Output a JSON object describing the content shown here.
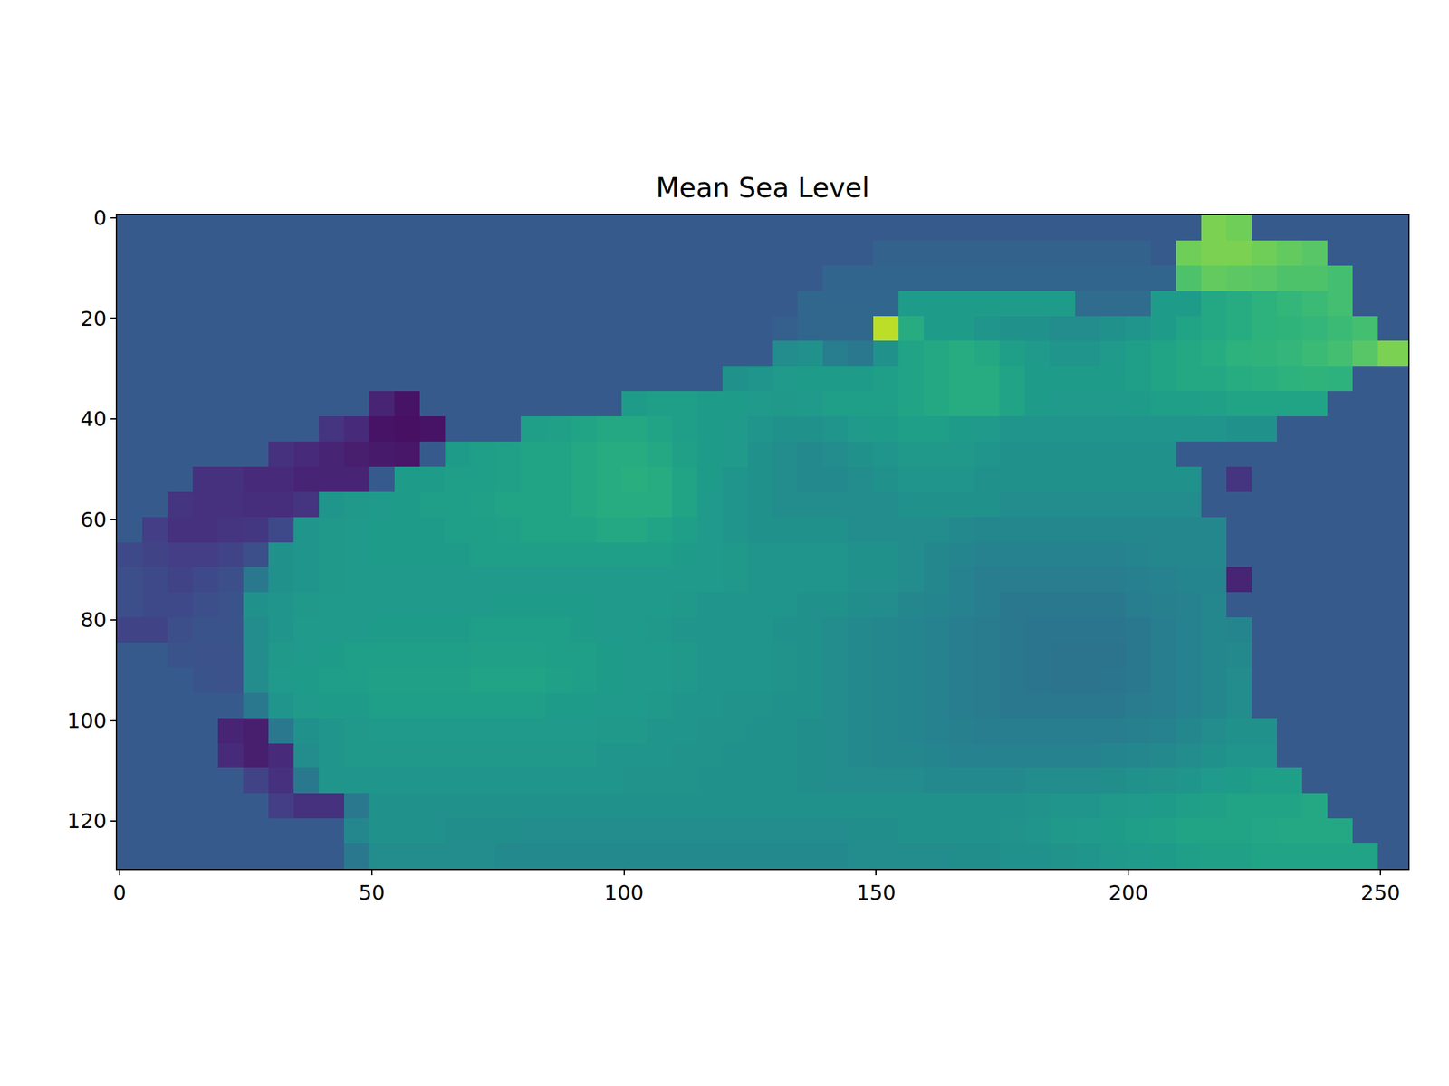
{
  "chart_data": {
    "type": "heatmap",
    "title": "Mean Sea Level",
    "color": "Viridis",
    "grid": false,
    "xlim": [
      -0.5,
      255.5
    ],
    "ylim": [
      129.5,
      -0.5
    ],
    "xticks": [
      0,
      50,
      100,
      150,
      200,
      250
    ],
    "yticks": [
      0,
      20,
      40,
      60,
      80,
      100,
      120
    ],
    "zlim": [
      0,
      100
    ],
    "x": [
      2,
      7,
      12,
      17,
      22,
      27,
      32,
      37,
      42,
      47,
      52,
      57,
      62,
      67,
      72,
      77,
      82,
      87,
      92,
      97,
      102,
      107,
      112,
      117,
      122,
      127,
      132,
      137,
      142,
      147,
      152,
      157,
      162,
      167,
      172,
      177,
      182,
      187,
      192,
      197,
      202,
      207,
      212,
      217,
      222,
      227,
      232,
      237,
      242,
      247,
      252,
      257
    ],
    "y": [
      2,
      7,
      12,
      17,
      22,
      27,
      32,
      37,
      42,
      47,
      52,
      57,
      62,
      67,
      72,
      77,
      82,
      87,
      92,
      97,
      102,
      107,
      112,
      117,
      122,
      127
    ],
    "cells": [
      [
        28,
        28,
        28,
        28,
        28,
        28,
        28,
        28,
        28,
        28,
        28,
        28,
        28,
        28,
        28,
        28,
        28,
        28,
        28,
        28,
        28,
        28,
        28,
        28,
        28,
        28,
        28,
        28,
        28,
        28,
        28,
        28,
        28,
        28,
        28,
        28,
        28,
        28,
        28,
        28,
        28,
        28,
        28,
        80,
        78,
        28,
        28,
        28,
        28,
        28,
        28,
        28
      ],
      [
        28,
        28,
        28,
        28,
        28,
        28,
        28,
        28,
        28,
        28,
        28,
        28,
        28,
        28,
        28,
        28,
        28,
        28,
        28,
        28,
        28,
        28,
        28,
        28,
        28,
        28,
        28,
        28,
        28,
        28,
        31,
        31,
        31,
        31,
        31,
        31,
        31,
        31,
        31,
        31,
        31,
        28,
        78,
        80,
        80,
        78,
        76,
        74,
        28,
        28,
        28,
        28
      ],
      [
        28,
        28,
        28,
        28,
        28,
        28,
        28,
        28,
        28,
        28,
        28,
        28,
        28,
        28,
        28,
        28,
        28,
        28,
        28,
        28,
        28,
        28,
        28,
        28,
        28,
        28,
        28,
        28,
        32,
        32,
        32,
        32,
        32,
        32,
        32,
        32,
        32,
        32,
        32,
        32,
        32,
        32,
        72,
        76,
        75,
        74,
        72,
        72,
        70,
        28,
        28,
        28
      ],
      [
        28,
        28,
        28,
        28,
        28,
        28,
        28,
        28,
        28,
        28,
        28,
        28,
        28,
        28,
        28,
        28,
        28,
        28,
        28,
        28,
        28,
        28,
        28,
        28,
        28,
        28,
        28,
        33,
        33,
        33,
        33,
        55,
        55,
        55,
        55,
        55,
        55,
        55,
        35,
        35,
        35,
        55,
        55,
        60,
        62,
        64,
        66,
        68,
        70,
        28,
        28,
        28
      ],
      [
        28,
        28,
        28,
        28,
        28,
        28,
        28,
        28,
        28,
        28,
        28,
        28,
        28,
        28,
        28,
        28,
        28,
        28,
        28,
        28,
        28,
        28,
        28,
        28,
        28,
        28,
        30,
        33,
        33,
        33,
        90,
        62,
        55,
        55,
        52,
        50,
        50,
        48,
        48,
        50,
        52,
        55,
        58,
        60,
        62,
        64,
        65,
        66,
        68,
        70,
        28,
        28
      ],
      [
        28,
        28,
        28,
        28,
        28,
        28,
        28,
        28,
        28,
        28,
        28,
        28,
        28,
        28,
        28,
        28,
        28,
        28,
        28,
        28,
        28,
        28,
        28,
        28,
        28,
        28,
        48,
        50,
        42,
        40,
        50,
        58,
        60,
        62,
        60,
        56,
        54,
        52,
        52,
        54,
        56,
        58,
        60,
        62,
        64,
        65,
        66,
        68,
        70,
        74,
        80,
        80
      ],
      [
        28,
        28,
        28,
        28,
        28,
        28,
        28,
        28,
        28,
        28,
        28,
        28,
        28,
        28,
        28,
        28,
        28,
        28,
        28,
        28,
        28,
        28,
        28,
        28,
        50,
        52,
        54,
        55,
        55,
        55,
        56,
        58,
        60,
        62,
        62,
        58,
        55,
        55,
        55,
        55,
        56,
        58,
        60,
        60,
        62,
        63,
        64,
        65,
        64,
        28,
        28,
        28
      ],
      [
        28,
        28,
        28,
        28,
        28,
        28,
        28,
        28,
        28,
        28,
        10,
        5,
        28,
        28,
        28,
        28,
        28,
        28,
        28,
        28,
        55,
        56,
        56,
        55,
        55,
        54,
        53,
        54,
        56,
        56,
        56,
        58,
        60,
        62,
        62,
        58,
        55,
        54,
        54,
        54,
        55,
        56,
        56,
        57,
        58,
        58,
        58,
        58,
        28,
        28,
        28,
        28
      ],
      [
        28,
        28,
        28,
        28,
        28,
        28,
        28,
        28,
        15,
        12,
        5,
        4,
        5,
        28,
        28,
        28,
        56,
        57,
        58,
        60,
        60,
        58,
        56,
        55,
        54,
        52,
        50,
        50,
        52,
        54,
        55,
        56,
        56,
        55,
        54,
        52,
        52,
        52,
        52,
        52,
        52,
        52,
        52,
        52,
        50,
        50,
        28,
        28,
        28,
        28,
        28,
        28
      ],
      [
        28,
        28,
        28,
        28,
        28,
        28,
        14,
        12,
        10,
        8,
        7,
        6,
        28,
        55,
        56,
        57,
        58,
        58,
        60,
        62,
        62,
        60,
        57,
        55,
        54,
        50,
        48,
        47,
        48,
        50,
        52,
        53,
        53,
        53,
        52,
        50,
        50,
        50,
        50,
        50,
        50,
        50,
        28,
        28,
        28,
        28,
        28,
        28,
        28,
        28,
        28,
        28
      ],
      [
        28,
        28,
        28,
        14,
        14,
        12,
        12,
        10,
        10,
        10,
        28,
        55,
        55,
        56,
        56,
        57,
        58,
        58,
        60,
        62,
        63,
        62,
        58,
        55,
        52,
        50,
        48,
        47,
        47,
        48,
        50,
        52,
        52,
        52,
        50,
        50,
        50,
        50,
        50,
        50,
        50,
        50,
        50,
        28,
        15,
        28,
        28,
        28,
        28,
        28,
        28,
        28
      ],
      [
        28,
        28,
        15,
        14,
        14,
        13,
        13,
        15,
        52,
        53,
        54,
        55,
        56,
        56,
        57,
        58,
        58,
        58,
        60,
        62,
        62,
        62,
        58,
        54,
        52,
        50,
        48,
        48,
        48,
        48,
        48,
        50,
        50,
        50,
        50,
        48,
        48,
        48,
        48,
        48,
        48,
        48,
        48,
        28,
        28,
        28,
        28,
        28,
        28,
        28,
        28,
        28
      ],
      [
        28,
        18,
        14,
        14,
        15,
        16,
        22,
        52,
        53,
        54,
        55,
        55,
        55,
        56,
        56,
        57,
        58,
        58,
        58,
        60,
        60,
        58,
        56,
        54,
        52,
        50,
        50,
        50,
        50,
        48,
        48,
        48,
        48,
        47,
        46,
        46,
        46,
        46,
        46,
        46,
        46,
        46,
        46,
        46,
        28,
        28,
        28,
        28,
        28,
        28,
        28,
        28
      ],
      [
        22,
        20,
        18,
        18,
        20,
        24,
        50,
        52,
        53,
        54,
        55,
        55,
        55,
        55,
        56,
        56,
        56,
        56,
        56,
        56,
        56,
        56,
        55,
        54,
        53,
        52,
        52,
        52,
        52,
        50,
        50,
        48,
        46,
        45,
        44,
        44,
        44,
        44,
        44,
        44,
        45,
        46,
        46,
        46,
        28,
        28,
        28,
        28,
        28,
        28,
        28,
        28
      ],
      [
        24,
        22,
        20,
        22,
        24,
        40,
        50,
        52,
        53,
        54,
        54,
        54,
        54,
        54,
        54,
        54,
        54,
        54,
        54,
        54,
        54,
        54,
        54,
        54,
        53,
        52,
        52,
        52,
        52,
        50,
        50,
        48,
        46,
        44,
        42,
        42,
        42,
        42,
        42,
        42,
        43,
        44,
        45,
        45,
        10,
        28,
        28,
        28,
        28,
        28,
        28,
        28
      ],
      [
        24,
        22,
        22,
        24,
        26,
        50,
        52,
        53,
        54,
        54,
        54,
        54,
        54,
        54,
        54,
        55,
        55,
        55,
        55,
        54,
        54,
        54,
        53,
        52,
        52,
        52,
        52,
        50,
        50,
        49,
        48,
        46,
        45,
        44,
        42,
        40,
        40,
        40,
        40,
        40,
        42,
        43,
        44,
        46,
        28,
        28,
        28,
        28,
        28,
        28,
        28,
        28
      ],
      [
        20,
        20,
        24,
        26,
        26,
        48,
        52,
        54,
        54,
        54,
        55,
        55,
        55,
        55,
        56,
        56,
        56,
        56,
        55,
        54,
        54,
        53,
        52,
        52,
        52,
        52,
        50,
        50,
        48,
        47,
        46,
        45,
        44,
        42,
        41,
        40,
        39,
        39,
        39,
        39,
        40,
        42,
        44,
        46,
        45,
        28,
        28,
        28,
        28,
        28,
        28,
        28
      ],
      [
        28,
        28,
        26,
        25,
        25,
        48,
        53,
        54,
        55,
        56,
        56,
        56,
        56,
        56,
        57,
        57,
        57,
        56,
        56,
        55,
        54,
        54,
        53,
        52,
        52,
        52,
        51,
        50,
        48,
        47,
        46,
        45,
        44,
        42,
        41,
        40,
        39,
        38,
        38,
        38,
        40,
        42,
        44,
        46,
        47,
        28,
        28,
        28,
        28,
        28,
        28,
        28
      ],
      [
        28,
        28,
        28,
        26,
        25,
        48,
        54,
        55,
        56,
        56,
        57,
        57,
        57,
        57,
        58,
        58,
        58,
        57,
        56,
        55,
        54,
        54,
        53,
        52,
        52,
        52,
        51,
        50,
        48,
        47,
        46,
        45,
        44,
        42,
        41,
        40,
        39,
        38,
        38,
        39,
        40,
        42,
        44,
        46,
        48,
        28,
        28,
        28,
        28,
        28,
        28,
        28
      ],
      [
        28,
        28,
        28,
        28,
        28,
        40,
        52,
        54,
        55,
        55,
        56,
        56,
        56,
        56,
        56,
        56,
        56,
        55,
        55,
        54,
        54,
        53,
        52,
        52,
        51,
        51,
        50,
        50,
        48,
        47,
        46,
        45,
        44,
        42,
        41,
        40,
        40,
        40,
        40,
        40,
        41,
        42,
        44,
        46,
        48,
        28,
        28,
        28,
        28,
        28,
        28,
        28
      ],
      [
        28,
        28,
        28,
        28,
        10,
        8,
        40,
        50,
        52,
        53,
        54,
        54,
        54,
        54,
        54,
        54,
        54,
        54,
        54,
        53,
        53,
        52,
        52,
        51,
        51,
        50,
        50,
        49,
        48,
        47,
        46,
        45,
        44,
        43,
        42,
        42,
        42,
        42,
        42,
        42,
        43,
        44,
        46,
        48,
        50,
        50,
        28,
        28,
        28,
        28,
        28,
        28
      ],
      [
        28,
        28,
        28,
        28,
        12,
        8,
        12,
        48,
        52,
        53,
        53,
        53,
        53,
        53,
        53,
        53,
        53,
        53,
        53,
        52,
        52,
        52,
        51,
        51,
        50,
        50,
        50,
        49,
        48,
        47,
        46,
        46,
        45,
        44,
        44,
        44,
        44,
        44,
        44,
        45,
        46,
        47,
        48,
        50,
        52,
        52,
        28,
        28,
        28,
        28,
        28,
        28
      ],
      [
        28,
        28,
        28,
        28,
        28,
        20,
        14,
        40,
        52,
        52,
        52,
        52,
        52,
        52,
        52,
        52,
        52,
        52,
        52,
        52,
        51,
        51,
        51,
        50,
        50,
        50,
        50,
        49,
        48,
        48,
        48,
        48,
        47,
        47,
        47,
        47,
        48,
        48,
        48,
        49,
        50,
        51,
        52,
        54,
        55,
        56,
        56,
        28,
        28,
        28,
        28,
        28
      ],
      [
        28,
        28,
        28,
        28,
        28,
        28,
        18,
        14,
        14,
        40,
        50,
        50,
        50,
        50,
        50,
        50,
        50,
        50,
        50,
        50,
        50,
        50,
        50,
        50,
        50,
        50,
        50,
        50,
        50,
        50,
        50,
        50,
        50,
        50,
        50,
        50,
        51,
        52,
        52,
        53,
        54,
        55,
        56,
        57,
        58,
        58,
        58,
        60,
        28,
        28,
        28,
        28
      ],
      [
        28,
        28,
        28,
        28,
        28,
        28,
        28,
        28,
        28,
        46,
        50,
        50,
        50,
        49,
        49,
        49,
        48,
        48,
        48,
        48,
        48,
        48,
        48,
        48,
        48,
        48,
        48,
        48,
        48,
        49,
        49,
        50,
        50,
        50,
        50,
        51,
        52,
        53,
        54,
        55,
        56,
        57,
        58,
        58,
        58,
        59,
        60,
        60,
        60,
        28,
        28,
        28
      ],
      [
        28,
        28,
        28,
        28,
        28,
        28,
        28,
        28,
        28,
        40,
        48,
        48,
        48,
        48,
        48,
        47,
        47,
        47,
        47,
        47,
        47,
        47,
        47,
        47,
        47,
        47,
        47,
        47,
        47,
        48,
        48,
        48,
        48,
        49,
        49,
        50,
        50,
        51,
        52,
        53,
        54,
        55,
        56,
        57,
        57,
        58,
        58,
        58,
        58,
        58,
        28,
        28
      ]
    ]
  }
}
